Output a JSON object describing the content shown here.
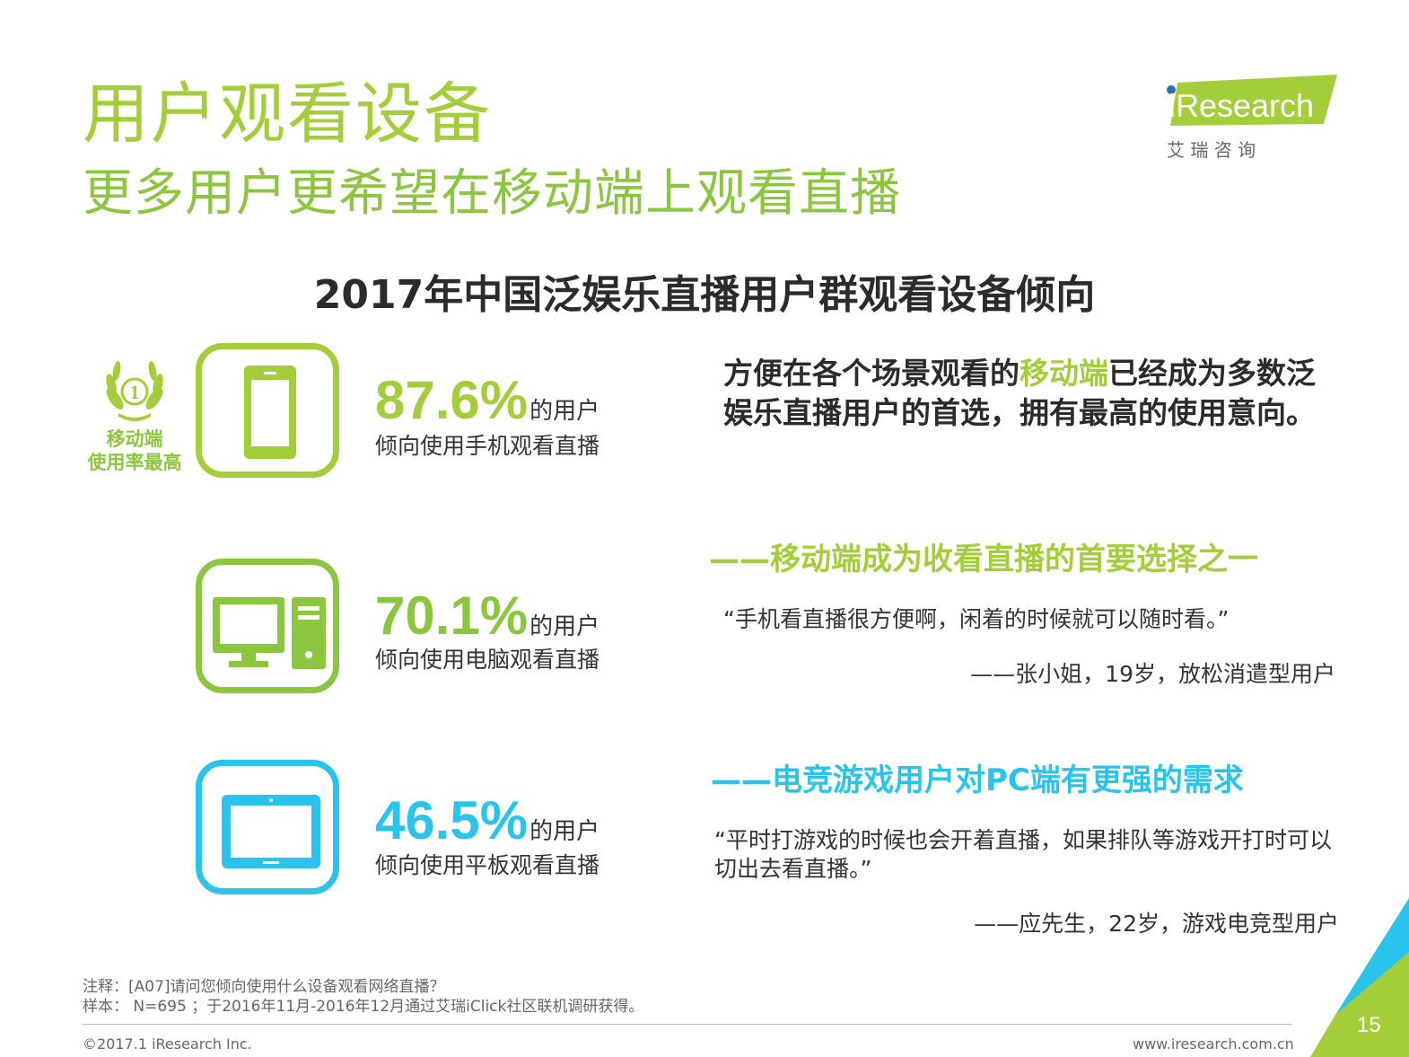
{
  "header": {
    "title": "用户观看设备",
    "subtitle": "更多用户更希望在移动端上观看直播"
  },
  "logo": {
    "wordmark": "iResearch",
    "cn": "艾 瑞 咨 询"
  },
  "chart_title": "2017年中国泛娱乐直播用户群观看设备倾向",
  "badge": {
    "rank": "1",
    "line1": "移动端",
    "line2": "使用率最高"
  },
  "devices": [
    {
      "icon": "smartphone-icon",
      "value": "87.6%",
      "suffix": "的用户",
      "desc": "倾向使用手机观看直播",
      "color": "#a3cd39"
    },
    {
      "icon": "desktop-computer-icon",
      "value": "70.1%",
      "suffix": "的用户",
      "desc": "倾向使用电脑观看直播",
      "color": "#8cc63f"
    },
    {
      "icon": "tablet-icon",
      "value": "46.5%",
      "suffix": "的用户",
      "desc": "倾向使用平板观看直播",
      "color": "#29c3ec"
    }
  ],
  "claim": {
    "pre": "方便在各个场景观看的",
    "highlight": "移动端",
    "post": "已经成为多数泛娱乐直播用户的首选，拥有最高的使用意向。"
  },
  "section1": {
    "heading": "——移动端成为收看直播的首要选择之一",
    "quote": "“手机看直播很方便啊，闲着的时候就可以随时看。”",
    "attribution": "——张小姐，19岁，放松消遣型用户"
  },
  "section2": {
    "heading": "——电竞游戏用户对PC端有更强的需求",
    "quote": "“平时打游戏的时候也会开着直播，如果排队等游戏开打时可以切出去看直播。”",
    "attribution": "——应先生，22岁，游戏电竞型用户"
  },
  "footer": {
    "note": "注释：[A07]请问您倾向使用什么设备观看网络直播？",
    "sample": "样本： N=695 ；于2016年11月-2016年12月通过艾瑞iClick社区联机调研获得。",
    "copyright": "©2017.1 iResearch Inc.",
    "website": "www.iresearch.com.cn",
    "page_number": "15"
  },
  "colors": {
    "lime": "#a3cd39",
    "green": "#8cc63f",
    "cyan": "#29c3ec",
    "dark_text": "#2b2b2b"
  }
}
